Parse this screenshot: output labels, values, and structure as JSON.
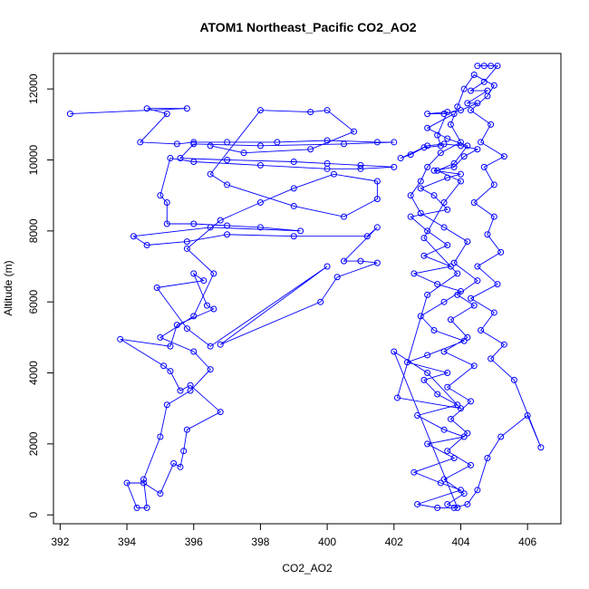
{
  "chart_data": {
    "type": "scatter",
    "title": "ATOM1 Northeast_Pacific CO2_AO2",
    "xlabel": "CO2_AO2",
    "ylabel": "Altitude (m)",
    "xlim": [
      391.8,
      407.0
    ],
    "ylim": [
      -250,
      13000
    ],
    "x_ticks": [
      392,
      394,
      396,
      398,
      400,
      402,
      404,
      406
    ],
    "y_ticks": [
      0,
      2000,
      4000,
      6000,
      8000,
      10000,
      12000
    ],
    "grid": false,
    "legend": "none",
    "colors": {
      "series": "#0000ff",
      "frame": "#000000"
    },
    "series": [
      {
        "points": [
          [
            392.3,
            11300
          ],
          [
            395.8,
            11450
          ],
          [
            394.6,
            11450
          ],
          [
            395.2,
            11300
          ],
          [
            394.4,
            10500
          ],
          [
            395.5,
            10450
          ],
          [
            396.0,
            10500
          ],
          [
            397.0,
            10500
          ],
          [
            398.5,
            10500
          ],
          [
            400.0,
            10550
          ],
          [
            401.5,
            10500
          ],
          [
            402.0,
            10500
          ],
          [
            400.5,
            10450
          ],
          [
            398.0,
            10400
          ],
          [
            396.0,
            10450
          ],
          [
            395.6,
            10050
          ],
          [
            397.0,
            10000
          ],
          [
            399.0,
            9950
          ],
          [
            400.0,
            9900
          ],
          [
            401.0,
            9850
          ],
          [
            402.0,
            9800
          ],
          [
            401.0,
            9750
          ],
          [
            400.0,
            9750
          ],
          [
            398.0,
            9850
          ],
          [
            396.0,
            9950
          ],
          [
            395.3,
            10050
          ],
          [
            395.0,
            9000
          ],
          [
            395.2,
            8800
          ],
          [
            395.2,
            8200
          ],
          [
            396.0,
            8200
          ],
          [
            397.0,
            8150
          ],
          [
            398.0,
            8100
          ],
          [
            399.2,
            8000
          ],
          [
            396.5,
            8100
          ],
          [
            394.2,
            7850
          ],
          [
            394.6,
            7600
          ],
          [
            395.8,
            7700
          ],
          [
            397.0,
            7900
          ],
          [
            399.0,
            7850
          ],
          [
            401.2,
            7850
          ],
          [
            401.5,
            8100
          ],
          [
            400.5,
            7150
          ],
          [
            401.0,
            7150
          ],
          [
            401.5,
            7100
          ],
          [
            400.3,
            6700
          ],
          [
            399.8,
            6000
          ],
          [
            396.8,
            4800
          ],
          [
            400.0,
            7000
          ],
          [
            396.5,
            4750
          ],
          [
            395.8,
            5250
          ],
          [
            394.9,
            6400
          ],
          [
            396.3,
            6600
          ],
          [
            396.0,
            6800
          ],
          [
            396.4,
            5900
          ],
          [
            396.6,
            5800
          ],
          [
            395.5,
            5350
          ],
          [
            395.3,
            4750
          ],
          [
            393.8,
            4950
          ],
          [
            395.1,
            4200
          ],
          [
            395.3,
            4050
          ],
          [
            395.6,
            3500
          ],
          [
            395.9,
            3650
          ],
          [
            396.8,
            2900
          ],
          [
            395.8,
            2400
          ],
          [
            395.7,
            1800
          ],
          [
            395.6,
            1350
          ],
          [
            395.4,
            1450
          ],
          [
            395.0,
            600
          ],
          [
            394.5,
            900
          ],
          [
            394.0,
            900
          ],
          [
            394.3,
            200
          ],
          [
            394.6,
            200
          ],
          [
            394.5,
            1000
          ],
          [
            395.0,
            2200
          ],
          [
            395.2,
            3100
          ],
          [
            395.9,
            3500
          ],
          [
            396.5,
            4100
          ],
          [
            396.0,
            4600
          ],
          [
            395.0,
            5000
          ],
          [
            396.0,
            5600
          ],
          [
            396.6,
            6800
          ],
          [
            395.8,
            7500
          ],
          [
            396.8,
            8300
          ],
          [
            398.0,
            8800
          ],
          [
            399.0,
            9200
          ],
          [
            400.2,
            9600
          ],
          [
            401.5,
            9400
          ],
          [
            401.5,
            8900
          ],
          [
            400.5,
            8400
          ],
          [
            399.0,
            8700
          ],
          [
            397.0,
            9300
          ],
          [
            396.5,
            9600
          ],
          [
            398.0,
            11400
          ],
          [
            399.5,
            11350
          ],
          [
            400.0,
            11400
          ],
          [
            400.8,
            10800
          ],
          [
            399.5,
            10300
          ],
          [
            397.5,
            10200
          ],
          [
            396.5,
            10400
          ]
        ]
      },
      {
        "points": [
          [
            404.5,
            12650
          ],
          [
            404.7,
            12650
          ],
          [
            404.9,
            12650
          ],
          [
            405.1,
            12650
          ],
          [
            404.7,
            12200
          ],
          [
            404.3,
            11950
          ],
          [
            404.8,
            11950
          ],
          [
            404.2,
            11600
          ],
          [
            404.5,
            11600
          ],
          [
            404.0,
            11400
          ],
          [
            403.5,
            11300
          ],
          [
            403.0,
            11300
          ],
          [
            403.6,
            11350
          ],
          [
            403.3,
            10700
          ],
          [
            403.4,
            10400
          ],
          [
            402.9,
            10350
          ],
          [
            402.5,
            10150
          ],
          [
            402.2,
            10050
          ],
          [
            403.0,
            10400
          ],
          [
            403.5,
            10450
          ],
          [
            404.0,
            10400
          ],
          [
            404.5,
            10300
          ],
          [
            404.1,
            10100
          ],
          [
            403.8,
            9800
          ],
          [
            403.2,
            9700
          ],
          [
            404.0,
            9600
          ],
          [
            403.6,
            9500
          ],
          [
            402.8,
            9200
          ],
          [
            403.2,
            9000
          ],
          [
            403.6,
            8600
          ],
          [
            402.5,
            8400
          ],
          [
            403.0,
            8000
          ],
          [
            403.6,
            7600
          ],
          [
            402.9,
            7300
          ],
          [
            403.7,
            7000
          ],
          [
            402.6,
            6800
          ],
          [
            403.3,
            6500
          ],
          [
            404.0,
            6300
          ],
          [
            403.5,
            6000
          ],
          [
            402.8,
            5600
          ],
          [
            403.2,
            5200
          ],
          [
            404.1,
            4900
          ],
          [
            403.0,
            4500
          ],
          [
            402.4,
            4300
          ],
          [
            403.6,
            4000
          ],
          [
            402.9,
            3800
          ],
          [
            403.3,
            3400
          ],
          [
            403.9,
            3100
          ],
          [
            402.7,
            2800
          ],
          [
            403.5,
            2400
          ],
          [
            404.1,
            2200
          ],
          [
            403.0,
            2000
          ],
          [
            403.8,
            1600
          ],
          [
            402.6,
            1200
          ],
          [
            403.4,
            900
          ],
          [
            404.0,
            700
          ],
          [
            402.7,
            300
          ],
          [
            403.3,
            200
          ],
          [
            403.8,
            200
          ],
          [
            404.2,
            300
          ],
          [
            404.5,
            700
          ],
          [
            404.8,
            1600
          ],
          [
            405.2,
            2200
          ],
          [
            406.0,
            2800
          ],
          [
            406.4,
            1900
          ],
          [
            405.6,
            3800
          ],
          [
            404.9,
            4400
          ],
          [
            405.3,
            4800
          ],
          [
            404.6,
            5200
          ],
          [
            405.0,
            5700
          ],
          [
            404.3,
            6100
          ],
          [
            405.1,
            6500
          ],
          [
            404.5,
            7000
          ],
          [
            405.2,
            7400
          ],
          [
            404.8,
            7900
          ],
          [
            405.0,
            8400
          ],
          [
            404.4,
            8800
          ],
          [
            405.0,
            9300
          ],
          [
            404.7,
            9800
          ],
          [
            405.3,
            10100
          ],
          [
            404.6,
            10500
          ],
          [
            404.9,
            11000
          ],
          [
            404.3,
            11400
          ],
          [
            404.8,
            11800
          ],
          [
            405.0,
            12100
          ],
          [
            404.4,
            12400
          ],
          [
            404.1,
            12000
          ],
          [
            403.9,
            11500
          ],
          [
            403.7,
            11000
          ],
          [
            404.0,
            10500
          ],
          [
            403.4,
            10200
          ],
          [
            403.0,
            9800
          ],
          [
            402.8,
            9400
          ],
          [
            402.5,
            9000
          ],
          [
            402.8,
            8500
          ],
          [
            403.5,
            8100
          ],
          [
            404.2,
            7700
          ],
          [
            403.8,
            7100
          ],
          [
            404.5,
            6600
          ],
          [
            403.9,
            6200
          ],
          [
            404.4,
            5900
          ],
          [
            403.7,
            5500
          ],
          [
            404.2,
            5000
          ],
          [
            403.5,
            4600
          ],
          [
            404.4,
            4200
          ],
          [
            403.6,
            3600
          ],
          [
            404.3,
            3200
          ],
          [
            403.7,
            2700
          ],
          [
            404.2,
            2300
          ],
          [
            403.6,
            1800
          ],
          [
            404.3,
            1400
          ],
          [
            403.5,
            1000
          ],
          [
            404.1,
            600
          ],
          [
            403.6,
            300
          ],
          [
            403.9,
            200
          ],
          [
            402.0,
            4600
          ],
          [
            403.0,
            4000
          ],
          [
            404.0,
            3000
          ],
          [
            402.1,
            3300
          ],
          [
            403.0,
            6200
          ],
          [
            403.9,
            6800
          ],
          [
            402.9,
            7800
          ],
          [
            403.5,
            8800
          ],
          [
            404.0,
            9400
          ],
          [
            403.3,
            9700
          ],
          [
            403.8,
            9900
          ],
          [
            404.2,
            10400
          ],
          [
            403.6,
            10600
          ],
          [
            403.0,
            10900
          ],
          [
            403.8,
            11300
          ]
        ]
      }
    ]
  }
}
